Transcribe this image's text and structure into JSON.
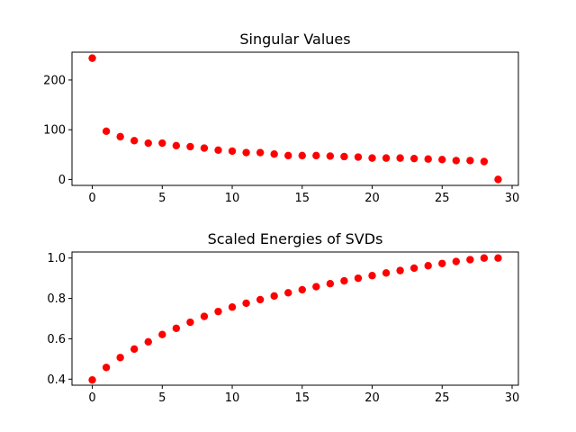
{
  "colors": {
    "marker": "#ff0000",
    "axes": "#000000",
    "background": "#ffffff"
  },
  "chart_data": [
    {
      "type": "scatter",
      "title": "Singular Values",
      "xlabel": "",
      "ylabel": "",
      "xlim": [
        -1.45,
        30.45
      ],
      "ylim": [
        -12,
        256
      ],
      "xticks": [
        0,
        5,
        10,
        15,
        20,
        25,
        30
      ],
      "yticks": [
        0,
        100,
        200
      ],
      "grid": false,
      "x": [
        0,
        1,
        2,
        3,
        4,
        5,
        6,
        7,
        8,
        9,
        10,
        11,
        12,
        13,
        14,
        15,
        16,
        17,
        18,
        19,
        20,
        21,
        22,
        23,
        24,
        25,
        26,
        27,
        28,
        29
      ],
      "y": [
        244,
        97,
        86,
        78,
        73,
        73,
        68,
        66,
        63,
        59,
        57,
        54,
        54,
        51,
        48,
        48,
        48,
        47,
        46,
        45,
        43,
        43,
        43,
        42,
        41,
        40,
        38,
        38,
        36,
        0
      ]
    },
    {
      "type": "scatter",
      "title": "Scaled Energies of SVDs",
      "xlabel": "",
      "ylabel": "",
      "xlim": [
        -1.45,
        30.45
      ],
      "ylim": [
        0.37,
        1.03
      ],
      "xticks": [
        0,
        5,
        10,
        15,
        20,
        25,
        30
      ],
      "yticks": [
        0.4,
        0.6,
        0.8,
        1.0
      ],
      "yticklabels": [
        "0.4",
        "0.6",
        "0.8",
        "1.0"
      ],
      "grid": false,
      "x": [
        0,
        1,
        2,
        3,
        4,
        5,
        6,
        7,
        8,
        9,
        10,
        11,
        12,
        13,
        14,
        15,
        16,
        17,
        18,
        19,
        20,
        21,
        22,
        23,
        24,
        25,
        26,
        27,
        28,
        29
      ],
      "y": [
        0.396,
        0.458,
        0.507,
        0.549,
        0.585,
        0.621,
        0.652,
        0.682,
        0.711,
        0.735,
        0.757,
        0.776,
        0.794,
        0.812,
        0.828,
        0.843,
        0.858,
        0.873,
        0.887,
        0.9,
        0.913,
        0.926,
        0.938,
        0.95,
        0.962,
        0.973,
        0.983,
        0.992,
        1.0,
        1.0
      ]
    }
  ]
}
